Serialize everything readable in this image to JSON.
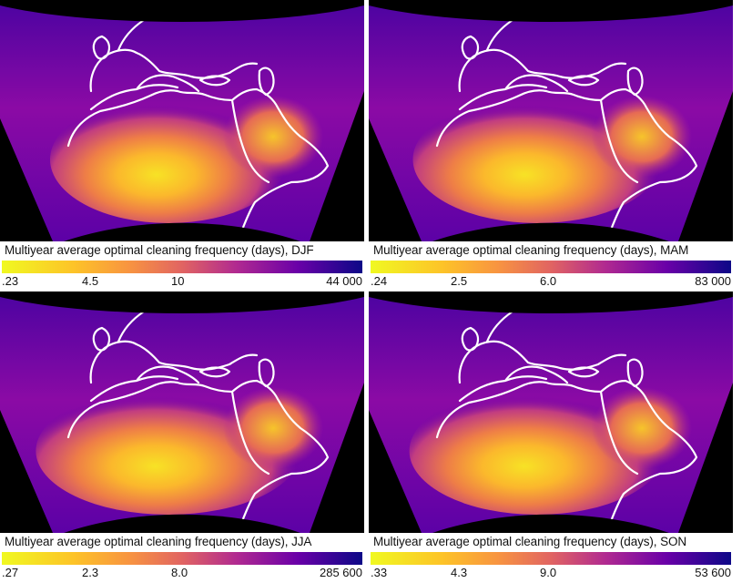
{
  "palette": {
    "low": "#f0f921",
    "mid_low": "#f89540",
    "mid": "#cc4778",
    "mid_high": "#7e03a8",
    "high": "#0d0887",
    "background": "#000000",
    "coastline": "#ffffff"
  },
  "colormap": "plasma_r",
  "panels": [
    {
      "season": "DJF",
      "caption": "Multiyear average optimal cleaning frequency (days), DJF",
      "ticks": [
        ".23",
        "4.5",
        "10",
        "44 000"
      ]
    },
    {
      "season": "MAM",
      "caption": "Multiyear average optimal cleaning frequency (days), MAM",
      "ticks": [
        ".24",
        "2.5",
        "6.0",
        "83 000"
      ]
    },
    {
      "season": "JJA",
      "caption": "Multiyear average optimal cleaning frequency (days), JJA",
      "ticks": [
        ".27",
        "2.3",
        "8.0",
        "285 600"
      ]
    },
    {
      "season": "SON",
      "caption": "Multiyear average optimal cleaning frequency (days), SON",
      "ticks": [
        ".33",
        "4.3",
        "9.0",
        "53 600"
      ]
    }
  ]
}
